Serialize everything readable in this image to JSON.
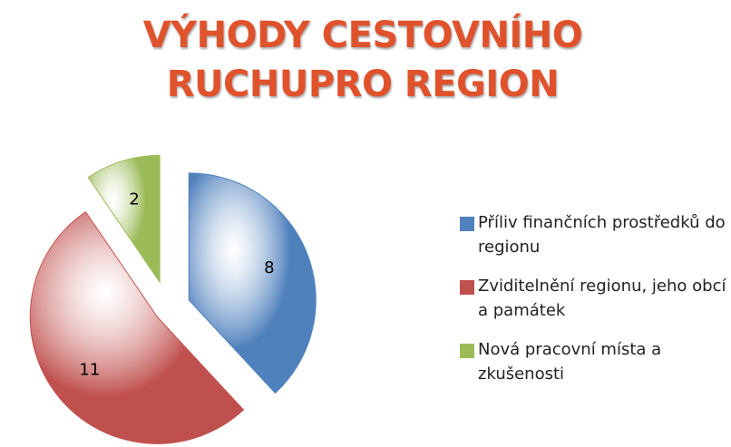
{
  "chart_data": {
    "type": "pie",
    "title": "VÝHODY CESTOVNÍHO RUCHUPRO REGION",
    "categories": [
      "Příliv finančních prostředků do regionu",
      "Zviditelnění regionu, jeho obcí a památek",
      "Nová pracovní místa a zkušenosti"
    ],
    "values": [
      8,
      11,
      2
    ],
    "colors": [
      "#4f81bd",
      "#c0504d",
      "#9bbb59"
    ],
    "legend": "right"
  }
}
